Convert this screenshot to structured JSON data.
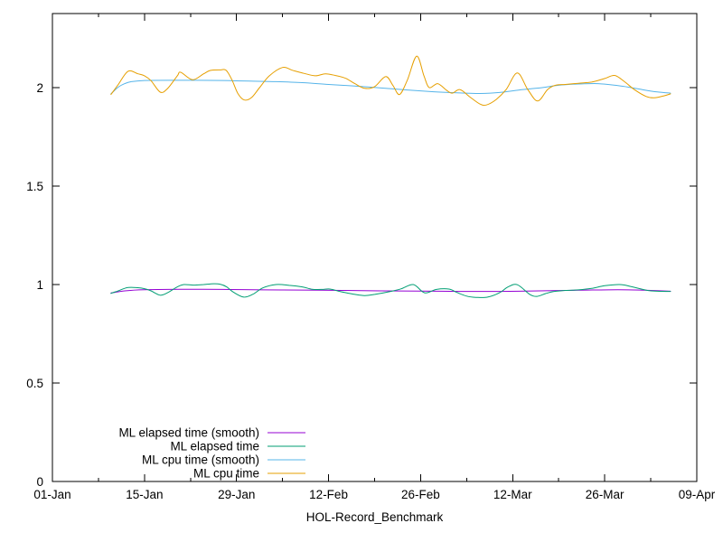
{
  "chart_data": {
    "type": "line",
    "title": "",
    "xlabel": "HOL-Record_Benchmark",
    "ylabel": "",
    "background_color": "#ffffff",
    "axis_color": "#000000",
    "grid": "off",
    "legend_position": "bottom-left-inside",
    "xlim_days": [
      0,
      98
    ],
    "ylim": [
      0,
      2.376
    ],
    "x_ticks": [
      {
        "day": 0,
        "label": "01-Jan"
      },
      {
        "day": 14,
        "label": "15-Jan"
      },
      {
        "day": 28,
        "label": "29-Jan"
      },
      {
        "day": 42,
        "label": "12-Feb"
      },
      {
        "day": 56,
        "label": "26-Feb"
      },
      {
        "day": 70,
        "label": "12-Mar"
      },
      {
        "day": 84,
        "label": "26-Mar"
      },
      {
        "day": 98,
        "label": "09-Apr"
      }
    ],
    "x_minor_tick_days": [
      7,
      21,
      35,
      49,
      63,
      77,
      91
    ],
    "y_ticks": [
      {
        "value": 0,
        "label": "0"
      },
      {
        "value": 0.5,
        "label": "0.5"
      },
      {
        "value": 1,
        "label": "1"
      },
      {
        "value": 1.5,
        "label": "1.5"
      },
      {
        "value": 2,
        "label": "2"
      }
    ],
    "series": [
      {
        "name": "ML elapsed time (smooth)",
        "color": "#9400d3",
        "points": [
          [
            8.9,
            0.957
          ],
          [
            11,
            0.968
          ],
          [
            14,
            0.974
          ],
          [
            20,
            0.976
          ],
          [
            26,
            0.975
          ],
          [
            32,
            0.973
          ],
          [
            38,
            0.972
          ],
          [
            44,
            0.97
          ],
          [
            50,
            0.968
          ],
          [
            56,
            0.967
          ],
          [
            62,
            0.965
          ],
          [
            68,
            0.965
          ],
          [
            74,
            0.968
          ],
          [
            80,
            0.971
          ],
          [
            86,
            0.974
          ],
          [
            90,
            0.971
          ],
          [
            94,
            0.966
          ]
        ]
      },
      {
        "name": "ML elapsed time",
        "color": "#009e73",
        "points": [
          [
            8.9,
            0.955
          ],
          [
            10,
            0.968
          ],
          [
            11.5,
            0.985
          ],
          [
            13,
            0.984
          ],
          [
            14,
            0.979
          ],
          [
            15,
            0.968
          ],
          [
            16.4,
            0.946
          ],
          [
            17.5,
            0.958
          ],
          [
            19,
            0.988
          ],
          [
            20,
            1.0
          ],
          [
            21.5,
            0.997
          ],
          [
            23,
            1.0
          ],
          [
            24.5,
            1.004
          ],
          [
            25.5,
            1.002
          ],
          [
            26.5,
            0.988
          ],
          [
            27.5,
            0.962
          ],
          [
            29.1,
            0.936
          ],
          [
            30.5,
            0.951
          ],
          [
            32,
            0.983
          ],
          [
            34,
            1.0
          ],
          [
            36,
            0.996
          ],
          [
            38,
            0.988
          ],
          [
            39.5,
            0.976
          ],
          [
            41,
            0.975
          ],
          [
            42.2,
            0.977
          ],
          [
            44,
            0.963
          ],
          [
            46,
            0.95
          ],
          [
            47.5,
            0.944
          ],
          [
            49,
            0.95
          ],
          [
            51,
            0.962
          ],
          [
            53,
            0.978
          ],
          [
            54.9,
            1.0
          ],
          [
            56.6,
            0.958
          ],
          [
            58.4,
            0.975
          ],
          [
            60.3,
            0.977
          ],
          [
            61.5,
            0.96
          ],
          [
            63,
            0.941
          ],
          [
            64.4,
            0.935
          ],
          [
            66.2,
            0.936
          ],
          [
            68,
            0.958
          ],
          [
            69.3,
            0.988
          ],
          [
            70.7,
            0.999
          ],
          [
            72.6,
            0.95
          ],
          [
            73.7,
            0.94
          ],
          [
            75,
            0.954
          ],
          [
            76.2,
            0.964
          ],
          [
            78,
            0.97
          ],
          [
            80,
            0.973
          ],
          [
            82,
            0.98
          ],
          [
            84,
            0.994
          ],
          [
            86.3,
            1.0
          ],
          [
            88,
            0.99
          ],
          [
            90.5,
            0.97
          ],
          [
            92,
            0.966
          ],
          [
            94,
            0.965
          ]
        ]
      },
      {
        "name": "ML cpu time (smooth)",
        "color": "#56b4e9",
        "points": [
          [
            8.9,
            1.968
          ],
          [
            10,
            2.002
          ],
          [
            11,
            2.02
          ],
          [
            12,
            2.03
          ],
          [
            14,
            2.036
          ],
          [
            18,
            2.037
          ],
          [
            22,
            2.037
          ],
          [
            26,
            2.036
          ],
          [
            30,
            2.033
          ],
          [
            34,
            2.03
          ],
          [
            38,
            2.025
          ],
          [
            42,
            2.016
          ],
          [
            46,
            2.008
          ],
          [
            50,
            1.998
          ],
          [
            54,
            1.988
          ],
          [
            58,
            1.979
          ],
          [
            62,
            1.973
          ],
          [
            65,
            1.97
          ],
          [
            68,
            1.975
          ],
          [
            71,
            1.988
          ],
          [
            74.5,
            2.0
          ],
          [
            77,
            2.012
          ],
          [
            80,
            2.018
          ],
          [
            83,
            2.02
          ],
          [
            86,
            2.01
          ],
          [
            88,
            2.0
          ],
          [
            90,
            1.988
          ],
          [
            92,
            1.978
          ],
          [
            94,
            1.972
          ]
        ]
      },
      {
        "name": "ML cpu time",
        "color": "#e69f00",
        "points": [
          [
            8.9,
            1.965
          ],
          [
            10,
            2.015
          ],
          [
            11.5,
            2.083
          ],
          [
            13,
            2.07
          ],
          [
            14,
            2.06
          ],
          [
            15,
            2.035
          ],
          [
            16.4,
            1.977
          ],
          [
            17.5,
            1.995
          ],
          [
            19,
            2.06
          ],
          [
            19.5,
            2.078
          ],
          [
            21.3,
            2.04
          ],
          [
            23,
            2.07
          ],
          [
            24,
            2.087
          ],
          [
            25.5,
            2.09
          ],
          [
            26.4,
            2.088
          ],
          [
            27.3,
            2.04
          ],
          [
            28.2,
            1.97
          ],
          [
            29.2,
            1.937
          ],
          [
            30.3,
            1.95
          ],
          [
            31.5,
            2.0
          ],
          [
            33,
            2.06
          ],
          [
            35,
            2.102
          ],
          [
            36.5,
            2.088
          ],
          [
            38.3,
            2.072
          ],
          [
            40,
            2.06
          ],
          [
            41.5,
            2.07
          ],
          [
            43,
            2.062
          ],
          [
            44.6,
            2.047
          ],
          [
            46,
            2.02
          ],
          [
            47.5,
            1.996
          ],
          [
            49,
            2.005
          ],
          [
            50.7,
            2.056
          ],
          [
            51.8,
            2.01
          ],
          [
            52.8,
            1.965
          ],
          [
            54,
            2.04
          ],
          [
            55.4,
            2.16
          ],
          [
            56.5,
            2.06
          ],
          [
            57.3,
            2.0
          ],
          [
            58.6,
            2.02
          ],
          [
            60,
            1.985
          ],
          [
            60.8,
            1.972
          ],
          [
            62,
            1.99
          ],
          [
            63.5,
            1.952
          ],
          [
            65,
            1.917
          ],
          [
            66,
            1.912
          ],
          [
            67.5,
            1.94
          ],
          [
            69,
            1.99
          ],
          [
            70.7,
            2.074
          ],
          [
            72.3,
            1.99
          ],
          [
            73.8,
            1.932
          ],
          [
            75.3,
            1.99
          ],
          [
            76.5,
            2.012
          ],
          [
            78,
            2.016
          ],
          [
            80,
            2.022
          ],
          [
            82,
            2.028
          ],
          [
            84,
            2.046
          ],
          [
            85.5,
            2.062
          ],
          [
            87,
            2.03
          ],
          [
            88.5,
            1.99
          ],
          [
            90.3,
            1.955
          ],
          [
            91.5,
            1.948
          ],
          [
            93,
            1.958
          ],
          [
            94,
            1.968
          ]
        ]
      }
    ]
  }
}
